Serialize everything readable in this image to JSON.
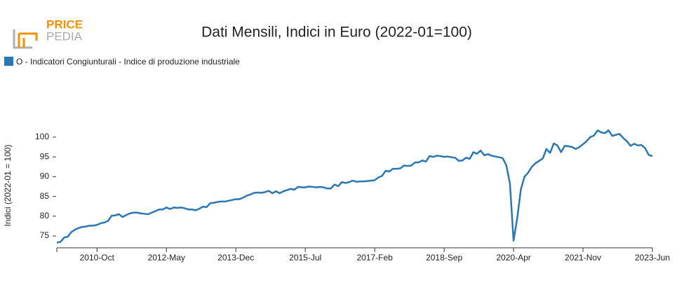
{
  "logo": {
    "top": "PRICE",
    "bottom": "PEDIA"
  },
  "chart_data": {
    "type": "line",
    "title": "Dati Mensili, Indici in Euro (2022-01=100)",
    "y_label": "Indici (2022-01 = 100)",
    "x": [
      "2009-Nov",
      "2009-Dec",
      "2010-Jan",
      "2010-Feb",
      "2010-Mar",
      "2010-Apr",
      "2010-May",
      "2010-Jun",
      "2010-Jul",
      "2010-Aug",
      "2010-Sep",
      "2010-Oct",
      "2010-Nov",
      "2010-Dec",
      "2011-Jan",
      "2011-Feb",
      "2011-Mar",
      "2011-Apr",
      "2011-May",
      "2011-Jun",
      "2011-Jul",
      "2011-Aug",
      "2011-Sep",
      "2011-Oct",
      "2011-Nov",
      "2011-Dec",
      "2012-Jan",
      "2012-Feb",
      "2012-Mar",
      "2012-Apr",
      "2012-May",
      "2012-Jun",
      "2012-Jul",
      "2012-Aug",
      "2012-Sep",
      "2012-Oct",
      "2012-Nov",
      "2012-Dec",
      "2013-Jan",
      "2013-Feb",
      "2013-Mar",
      "2013-Apr",
      "2013-May",
      "2013-Jun",
      "2013-Jul",
      "2013-Aug",
      "2013-Sep",
      "2013-Oct",
      "2013-Nov",
      "2013-Dec",
      "2014-Jan",
      "2014-Feb",
      "2014-Mar",
      "2014-Apr",
      "2014-May",
      "2014-Jun",
      "2014-Jul",
      "2014-Aug",
      "2014-Sep",
      "2014-Oct",
      "2014-Nov",
      "2014-Dec",
      "2015-Jan",
      "2015-Feb",
      "2015-Mar",
      "2015-Apr",
      "2015-May",
      "2015-Jun",
      "2015-Jul",
      "2015-Aug",
      "2015-Sep",
      "2015-Oct",
      "2015-Nov",
      "2015-Dec",
      "2016-Jan",
      "2016-Feb",
      "2016-Mar",
      "2016-Apr",
      "2016-May",
      "2016-Jun",
      "2016-Jul",
      "2016-Aug",
      "2016-Sep",
      "2016-Oct",
      "2016-Nov",
      "2016-Dec",
      "2017-Jan",
      "2017-Feb",
      "2017-Mar",
      "2017-Apr",
      "2017-May",
      "2017-Jun",
      "2017-Jul",
      "2017-Aug",
      "2017-Sep",
      "2017-Oct",
      "2017-Nov",
      "2017-Dec",
      "2018-Jan",
      "2018-Feb",
      "2018-Mar",
      "2018-Apr",
      "2018-May",
      "2018-Jun",
      "2018-Jul",
      "2018-Aug",
      "2018-Sep",
      "2018-Oct",
      "2018-Nov",
      "2018-Dec",
      "2019-Jan",
      "2019-Feb",
      "2019-Mar",
      "2019-Apr",
      "2019-May",
      "2019-Jun",
      "2019-Jul",
      "2019-Aug",
      "2019-Sep",
      "2019-Oct",
      "2019-Nov",
      "2019-Dec",
      "2020-Jan",
      "2020-Feb",
      "2020-Mar",
      "2020-Apr",
      "2020-May",
      "2020-Jun",
      "2020-Jul",
      "2020-Aug",
      "2020-Sep",
      "2020-Oct",
      "2020-Nov",
      "2020-Dec",
      "2021-Jan",
      "2021-Feb",
      "2021-Mar",
      "2021-Apr",
      "2021-May",
      "2021-Jun",
      "2021-Jul",
      "2021-Aug",
      "2021-Sep",
      "2021-Oct",
      "2021-Nov",
      "2021-Dec",
      "2022-Jan",
      "2022-Feb",
      "2022-Mar",
      "2022-Apr",
      "2022-May",
      "2022-Jun",
      "2022-Jul",
      "2022-Aug",
      "2022-Sep",
      "2022-Oct",
      "2022-Nov",
      "2022-Dec",
      "2023-Jan",
      "2023-Feb",
      "2023-Mar",
      "2023-Apr",
      "2023-May",
      "2023-Jun"
    ],
    "series": [
      {
        "name": "O - Indicatori Congiunturali - Indice di produzione industriale",
        "color": "#2a77b4",
        "values": [
          73.3,
          73.5,
          74.6,
          74.8,
          76.0,
          76.6,
          77.0,
          77.3,
          77.4,
          77.6,
          77.6,
          77.8,
          78.2,
          78.4,
          78.8,
          80.1,
          80.2,
          80.5,
          79.8,
          80.3,
          80.7,
          80.9,
          80.9,
          80.7,
          80.6,
          80.5,
          80.9,
          81.3,
          81.7,
          81.7,
          82.2,
          81.8,
          82.2,
          82.1,
          82.2,
          82.0,
          81.7,
          81.7,
          81.5,
          81.9,
          82.4,
          82.3,
          83.3,
          83.4,
          83.6,
          83.7,
          83.7,
          83.9,
          84.1,
          84.3,
          84.3,
          84.7,
          85.2,
          85.5,
          85.9,
          86.0,
          85.9,
          86.1,
          86.4,
          85.8,
          86.3,
          85.8,
          86.3,
          86.6,
          86.9,
          86.7,
          87.4,
          87.3,
          87.3,
          87.5,
          87.4,
          87.3,
          87.4,
          87.3,
          87.0,
          87.0,
          88.0,
          87.6,
          88.6,
          88.4,
          88.6,
          89.0,
          88.7,
          88.8,
          88.8,
          88.9,
          89.0,
          89.1,
          89.8,
          90.2,
          91.5,
          91.3,
          92.0,
          92.0,
          92.1,
          92.8,
          92.7,
          92.8,
          93.6,
          93.6,
          94.1,
          93.8,
          95.2,
          95.0,
          95.3,
          95.2,
          95.0,
          95.1,
          94.9,
          94.8,
          94.0,
          94.1,
          94.8,
          94.5,
          96.2,
          95.8,
          96.6,
          95.4,
          95.7,
          95.3,
          95.1,
          94.9,
          94.7,
          92.9,
          88.3,
          73.8,
          79.5,
          86.8,
          90.0,
          91.0,
          92.5,
          93.4,
          94.0,
          94.6,
          97.0,
          96.0,
          98.4,
          97.9,
          96.2,
          97.8,
          97.7,
          97.5,
          97.0,
          97.5,
          98.2,
          99.0,
          100.0,
          100.4,
          101.7,
          101.2,
          101.0,
          101.7,
          100.3,
          100.6,
          100.8,
          99.8,
          99.0,
          97.8,
          98.3,
          97.9,
          98.0,
          97.2,
          95.5,
          95.2
        ]
      }
    ],
    "xticks": [
      "2010-Oct",
      "2012-May",
      "2013-Dec",
      "2015-Jul",
      "2017-Feb",
      "2018-Sep",
      "2020-Apr",
      "2021-Nov",
      "2023-Jun"
    ],
    "ylim": [
      72,
      103.7
    ],
    "yticks": [
      75,
      80,
      85,
      90,
      95,
      100
    ],
    "grid": false
  }
}
